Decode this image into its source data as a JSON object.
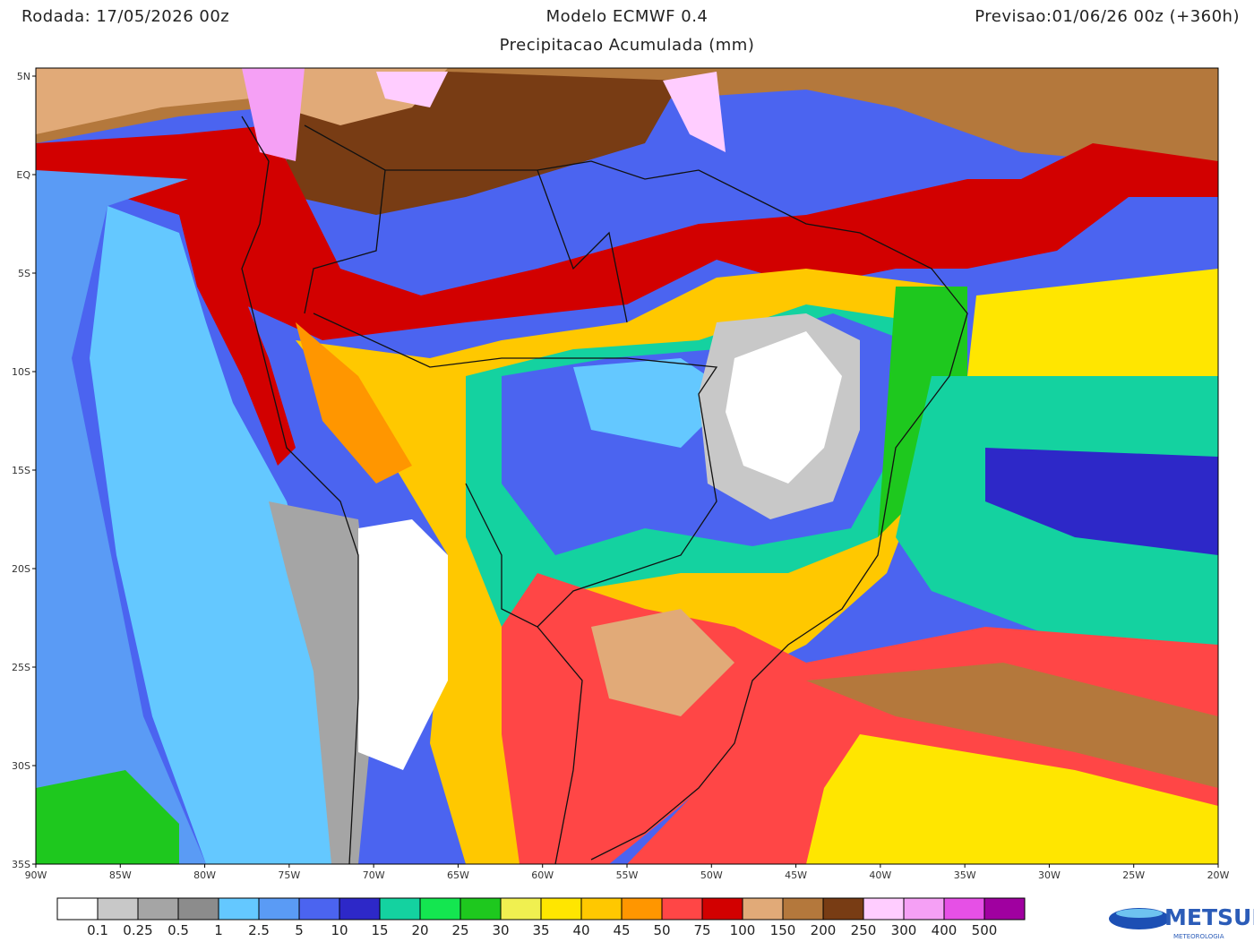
{
  "header": {
    "left": "Rodada: 17/05/2026 00z",
    "center": "Modelo ECMWF 0.4",
    "right": "Previsao:01/06/26 00z (+360h)",
    "subtitle": "Precipitacao Acumulada (mm)"
  },
  "map": {
    "lat_labels": [
      "5N",
      "EQ",
      "5S",
      "10S",
      "15S",
      "20S",
      "25S",
      "30S",
      "35S"
    ],
    "lon_labels": [
      "90W",
      "85W",
      "80W",
      "75W",
      "70W",
      "65W",
      "60W",
      "55W",
      "50W",
      "45W",
      "40W",
      "35W",
      "30W",
      "25W",
      "20W"
    ]
  },
  "legend": {
    "colors": [
      "#ffffff",
      "#c8c8c8",
      "#a5a5a5",
      "#8c8c8c",
      "#64c8ff",
      "#5a9bf5",
      "#4b64f0",
      "#2d28c8",
      "#14d2a0",
      "#14e650",
      "#1ec81e",
      "#f0f050",
      "#ffe600",
      "#ffc800",
      "#ff9600",
      "#ff4646",
      "#d20000",
      "#e1aa78",
      "#b4783c",
      "#783c14",
      "#ffcdff",
      "#f5a0f5",
      "#e650e6",
      "#a000a0"
    ],
    "labels": [
      "0.1",
      "0.25",
      "0.5",
      "1",
      "2.5",
      "5",
      "10",
      "15",
      "20",
      "25",
      "30",
      "35",
      "40",
      "45",
      "50",
      "75",
      "100",
      "150",
      "200",
      "250",
      "300",
      "400",
      "500"
    ]
  },
  "logo": {
    "text": "METSUL",
    "subtext": "METEOROLOGIA"
  }
}
